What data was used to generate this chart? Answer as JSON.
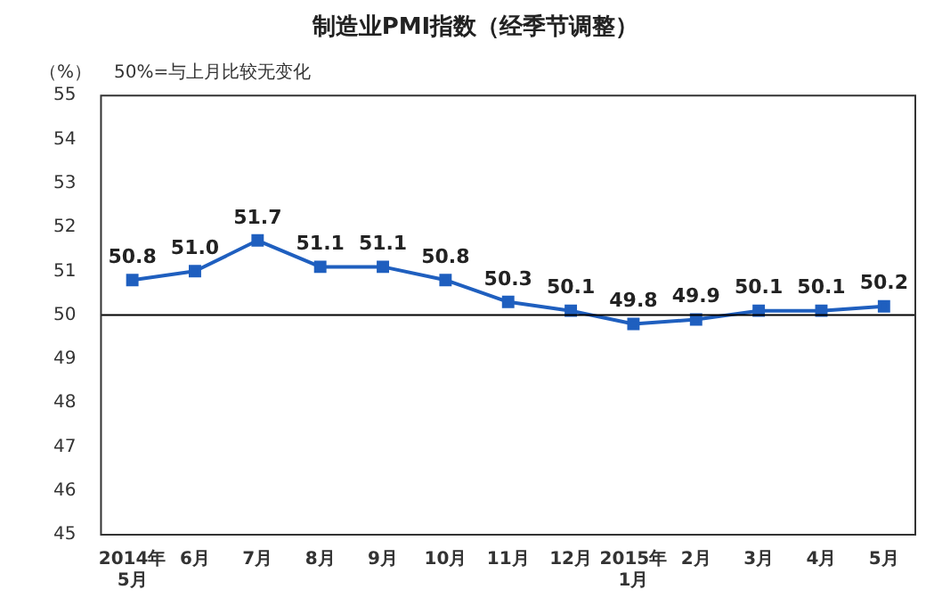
{
  "chart_data": {
    "type": "line",
    "title": "制造业PMI指数（经季节调整）",
    "ylabel": "（%）",
    "annotations": [
      "50%=与上月比较无变化"
    ],
    "categories": [
      "2014年\n5月",
      "6月",
      "7月",
      "8月",
      "9月",
      "10月",
      "11月",
      "12月",
      "2015年\n1月",
      "2月",
      "3月",
      "4月",
      "5月"
    ],
    "series": [
      {
        "color": "#1f5fbf",
        "values": [
          50.8,
          51.0,
          51.7,
          51.1,
          51.1,
          50.8,
          50.3,
          50.1,
          49.8,
          49.9,
          50.1,
          50.1,
          50.2
        ],
        "value_labels": [
          "50.8",
          "51.0",
          "51.7",
          "51.1",
          "51.1",
          "50.8",
          "50.3",
          "50.1",
          "49.8",
          "49.9",
          "50.1",
          "50.1",
          "50.2"
        ]
      }
    ],
    "ylim": [
      45,
      55
    ],
    "yticks": [
      45,
      46,
      47,
      48,
      49,
      50,
      51,
      52,
      53,
      54,
      55
    ],
    "ref_lines": [
      {
        "axis": "y",
        "value": 50,
        "color": "#000000"
      }
    ],
    "grid": false,
    "legend": false,
    "marker": "square",
    "line_style": "solid"
  }
}
